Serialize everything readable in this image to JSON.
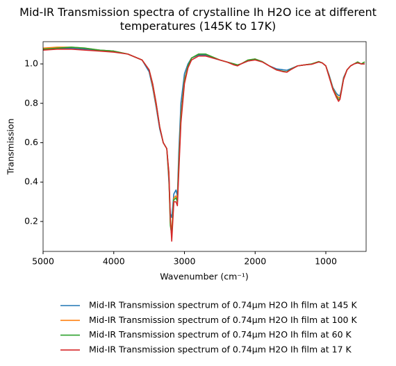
{
  "chart_data": {
    "type": "line",
    "title": "Mid-IR Transmission spectra of crystalline Ih H2O ice at different temperatures (145K to 17K)",
    "x_label": "Wavenumber (cm⁻¹)",
    "y_label": "Transmission",
    "x": [
      5000,
      4800,
      4600,
      4400,
      4200,
      4000,
      3800,
      3600,
      3500,
      3450,
      3400,
      3350,
      3300,
      3250,
      3220,
      3200,
      3180,
      3150,
      3120,
      3100,
      3080,
      3050,
      3000,
      2950,
      2900,
      2800,
      2700,
      2600,
      2500,
      2400,
      2300,
      2250,
      2200,
      2100,
      2000,
      1900,
      1800,
      1700,
      1600,
      1550,
      1500,
      1400,
      1300,
      1200,
      1100,
      1050,
      1000,
      950,
      900,
      850,
      820,
      800,
      780,
      750,
      700,
      650,
      600,
      550,
      500,
      450
    ],
    "series": [
      {
        "name": "Mid-IR Transmission spectrum of 0.74μm H2O Ih film at 145 K",
        "color": "#1f77b4",
        "values": [
          1.075,
          1.08,
          1.08,
          1.075,
          1.07,
          1.065,
          1.05,
          1.02,
          0.96,
          0.88,
          0.78,
          0.67,
          0.6,
          0.57,
          0.4,
          0.24,
          0.22,
          0.34,
          0.36,
          0.33,
          0.55,
          0.8,
          0.95,
          1.0,
          1.03,
          1.045,
          1.045,
          1.03,
          1.02,
          1.01,
          1.0,
          0.995,
          1.0,
          1.015,
          1.022,
          1.012,
          0.99,
          0.975,
          0.97,
          0.968,
          0.975,
          0.99,
          0.995,
          1.0,
          1.01,
          1.005,
          0.99,
          0.94,
          0.88,
          0.85,
          0.84,
          0.84,
          0.87,
          0.93,
          0.97,
          0.99,
          1.0,
          1.005,
          1.0,
          1.0
        ]
      },
      {
        "name": "Mid-IR Transmission spectrum of 0.74μm H2O Ih film at 100 K",
        "color": "#ff7f0e",
        "values": [
          1.08,
          1.085,
          1.085,
          1.08,
          1.07,
          1.065,
          1.05,
          1.02,
          0.97,
          0.89,
          0.79,
          0.68,
          0.6,
          0.57,
          0.42,
          0.19,
          0.16,
          0.32,
          0.33,
          0.31,
          0.5,
          0.74,
          0.92,
          0.99,
          1.03,
          1.05,
          1.05,
          1.035,
          1.02,
          1.01,
          1.0,
          0.995,
          1.0,
          1.02,
          1.025,
          1.012,
          0.99,
          0.97,
          0.962,
          0.96,
          0.972,
          0.99,
          0.995,
          1.0,
          1.012,
          1.005,
          0.99,
          0.935,
          0.875,
          0.84,
          0.83,
          0.83,
          0.865,
          0.925,
          0.97,
          0.99,
          1.0,
          1.01,
          1.0,
          1.01
        ]
      },
      {
        "name": "Mid-IR Transmission spectrum of 0.74μm H2O Ih film at 60 K",
        "color": "#2ca02c",
        "values": [
          1.075,
          1.08,
          1.085,
          1.08,
          1.07,
          1.065,
          1.05,
          1.02,
          0.97,
          0.9,
          0.8,
          0.68,
          0.6,
          0.57,
          0.44,
          0.18,
          0.13,
          0.31,
          0.32,
          0.3,
          0.48,
          0.72,
          0.91,
          0.99,
          1.03,
          1.05,
          1.05,
          1.035,
          1.02,
          1.01,
          1.0,
          0.995,
          1.0,
          1.02,
          1.025,
          1.012,
          0.99,
          0.97,
          0.962,
          0.96,
          0.972,
          0.99,
          0.995,
          1.0,
          1.012,
          1.005,
          0.99,
          0.932,
          0.872,
          0.835,
          0.82,
          0.825,
          0.862,
          0.922,
          0.97,
          0.99,
          1.0,
          1.01,
          1.0,
          1.01
        ]
      },
      {
        "name": "Mid-IR Transmission spectrum of 0.74μm H2O Ih film at 17 K",
        "color": "#d62728",
        "values": [
          1.07,
          1.075,
          1.075,
          1.07,
          1.065,
          1.06,
          1.05,
          1.02,
          0.97,
          0.9,
          0.8,
          0.68,
          0.6,
          0.57,
          0.45,
          0.22,
          0.1,
          0.3,
          0.3,
          0.28,
          0.45,
          0.7,
          0.9,
          0.98,
          1.02,
          1.04,
          1.04,
          1.03,
          1.02,
          1.01,
          0.995,
          0.99,
          1.0,
          1.015,
          1.02,
          1.01,
          0.99,
          0.97,
          0.96,
          0.958,
          0.97,
          0.99,
          0.995,
          0.998,
          1.01,
          1.005,
          0.99,
          0.93,
          0.87,
          0.83,
          0.81,
          0.82,
          0.86,
          0.92,
          0.97,
          0.99,
          1.0,
          1.005,
          1.0,
          1.0
        ]
      }
    ],
    "xlim": [
      5000,
      430
    ],
    "ylim": [
      0.048,
      1.113
    ],
    "xticks": [
      5000,
      4000,
      3000,
      2000,
      1000
    ],
    "yticks": [
      0.2,
      0.4,
      0.6,
      0.8,
      {
        "value": 1,
        "label": "1.0"
      }
    ],
    "grid": false,
    "legend": "below"
  }
}
